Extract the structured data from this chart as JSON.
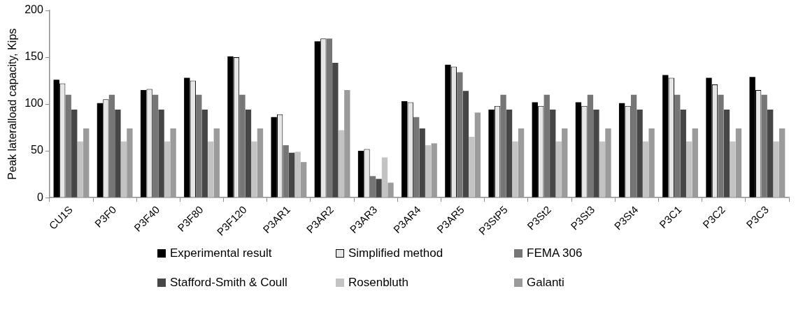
{
  "chart_data": {
    "type": "bar",
    "ylabel": "Peak lateralload capacity, Kips",
    "categories": [
      "CU1S",
      "P3F0",
      "P3F40",
      "P3F80",
      "P3F120",
      "P3AR1",
      "P3AR2",
      "P3AR3",
      "P3AR4",
      "P3AR5",
      "P3StP5",
      "P3St2",
      "P3St3",
      "P3St4",
      "P3C1",
      "P3C2",
      "P3C3"
    ],
    "series": [
      {
        "name": "Experimental result",
        "color": "#000000",
        "values": [
          126,
          101,
          115,
          128,
          151,
          86,
          167,
          50,
          103,
          142,
          94,
          102,
          102,
          101,
          131,
          128,
          129
        ]
      },
      {
        "name": "Simplified method",
        "color": "#e6e6e6",
        "values": [
          122,
          105,
          116,
          125,
          150,
          89,
          170,
          52,
          102,
          140,
          98,
          98,
          98,
          98,
          128,
          121,
          115
        ]
      },
      {
        "name": "FEMA 306",
        "color": "#767676",
        "values": [
          110,
          110,
          110,
          110,
          110,
          56,
          170,
          23,
          86,
          134,
          110,
          110,
          110,
          110,
          110,
          110,
          110
        ]
      },
      {
        "name": "Stafford-Smith & Coull",
        "color": "#464646",
        "values": [
          94,
          94,
          94,
          94,
          94,
          48,
          144,
          20,
          74,
          114,
          94,
          94,
          94,
          94,
          94,
          94,
          94
        ]
      },
      {
        "name": "Rosenbluth",
        "color": "#c3c3c3",
        "values": [
          60,
          60,
          60,
          60,
          60,
          49,
          72,
          43,
          56,
          65,
          60,
          60,
          60,
          60,
          60,
          60,
          60
        ]
      },
      {
        "name": "Galanti",
        "color": "#9b9b9b",
        "values": [
          74,
          74,
          74,
          74,
          74,
          38,
          115,
          16,
          58,
          91,
          74,
          74,
          74,
          74,
          74,
          74,
          74
        ]
      }
    ],
    "ylim": [
      0,
      200
    ],
    "yticks": [
      0,
      50,
      100,
      150,
      200
    ],
    "grid": false,
    "legend": "bottom"
  }
}
